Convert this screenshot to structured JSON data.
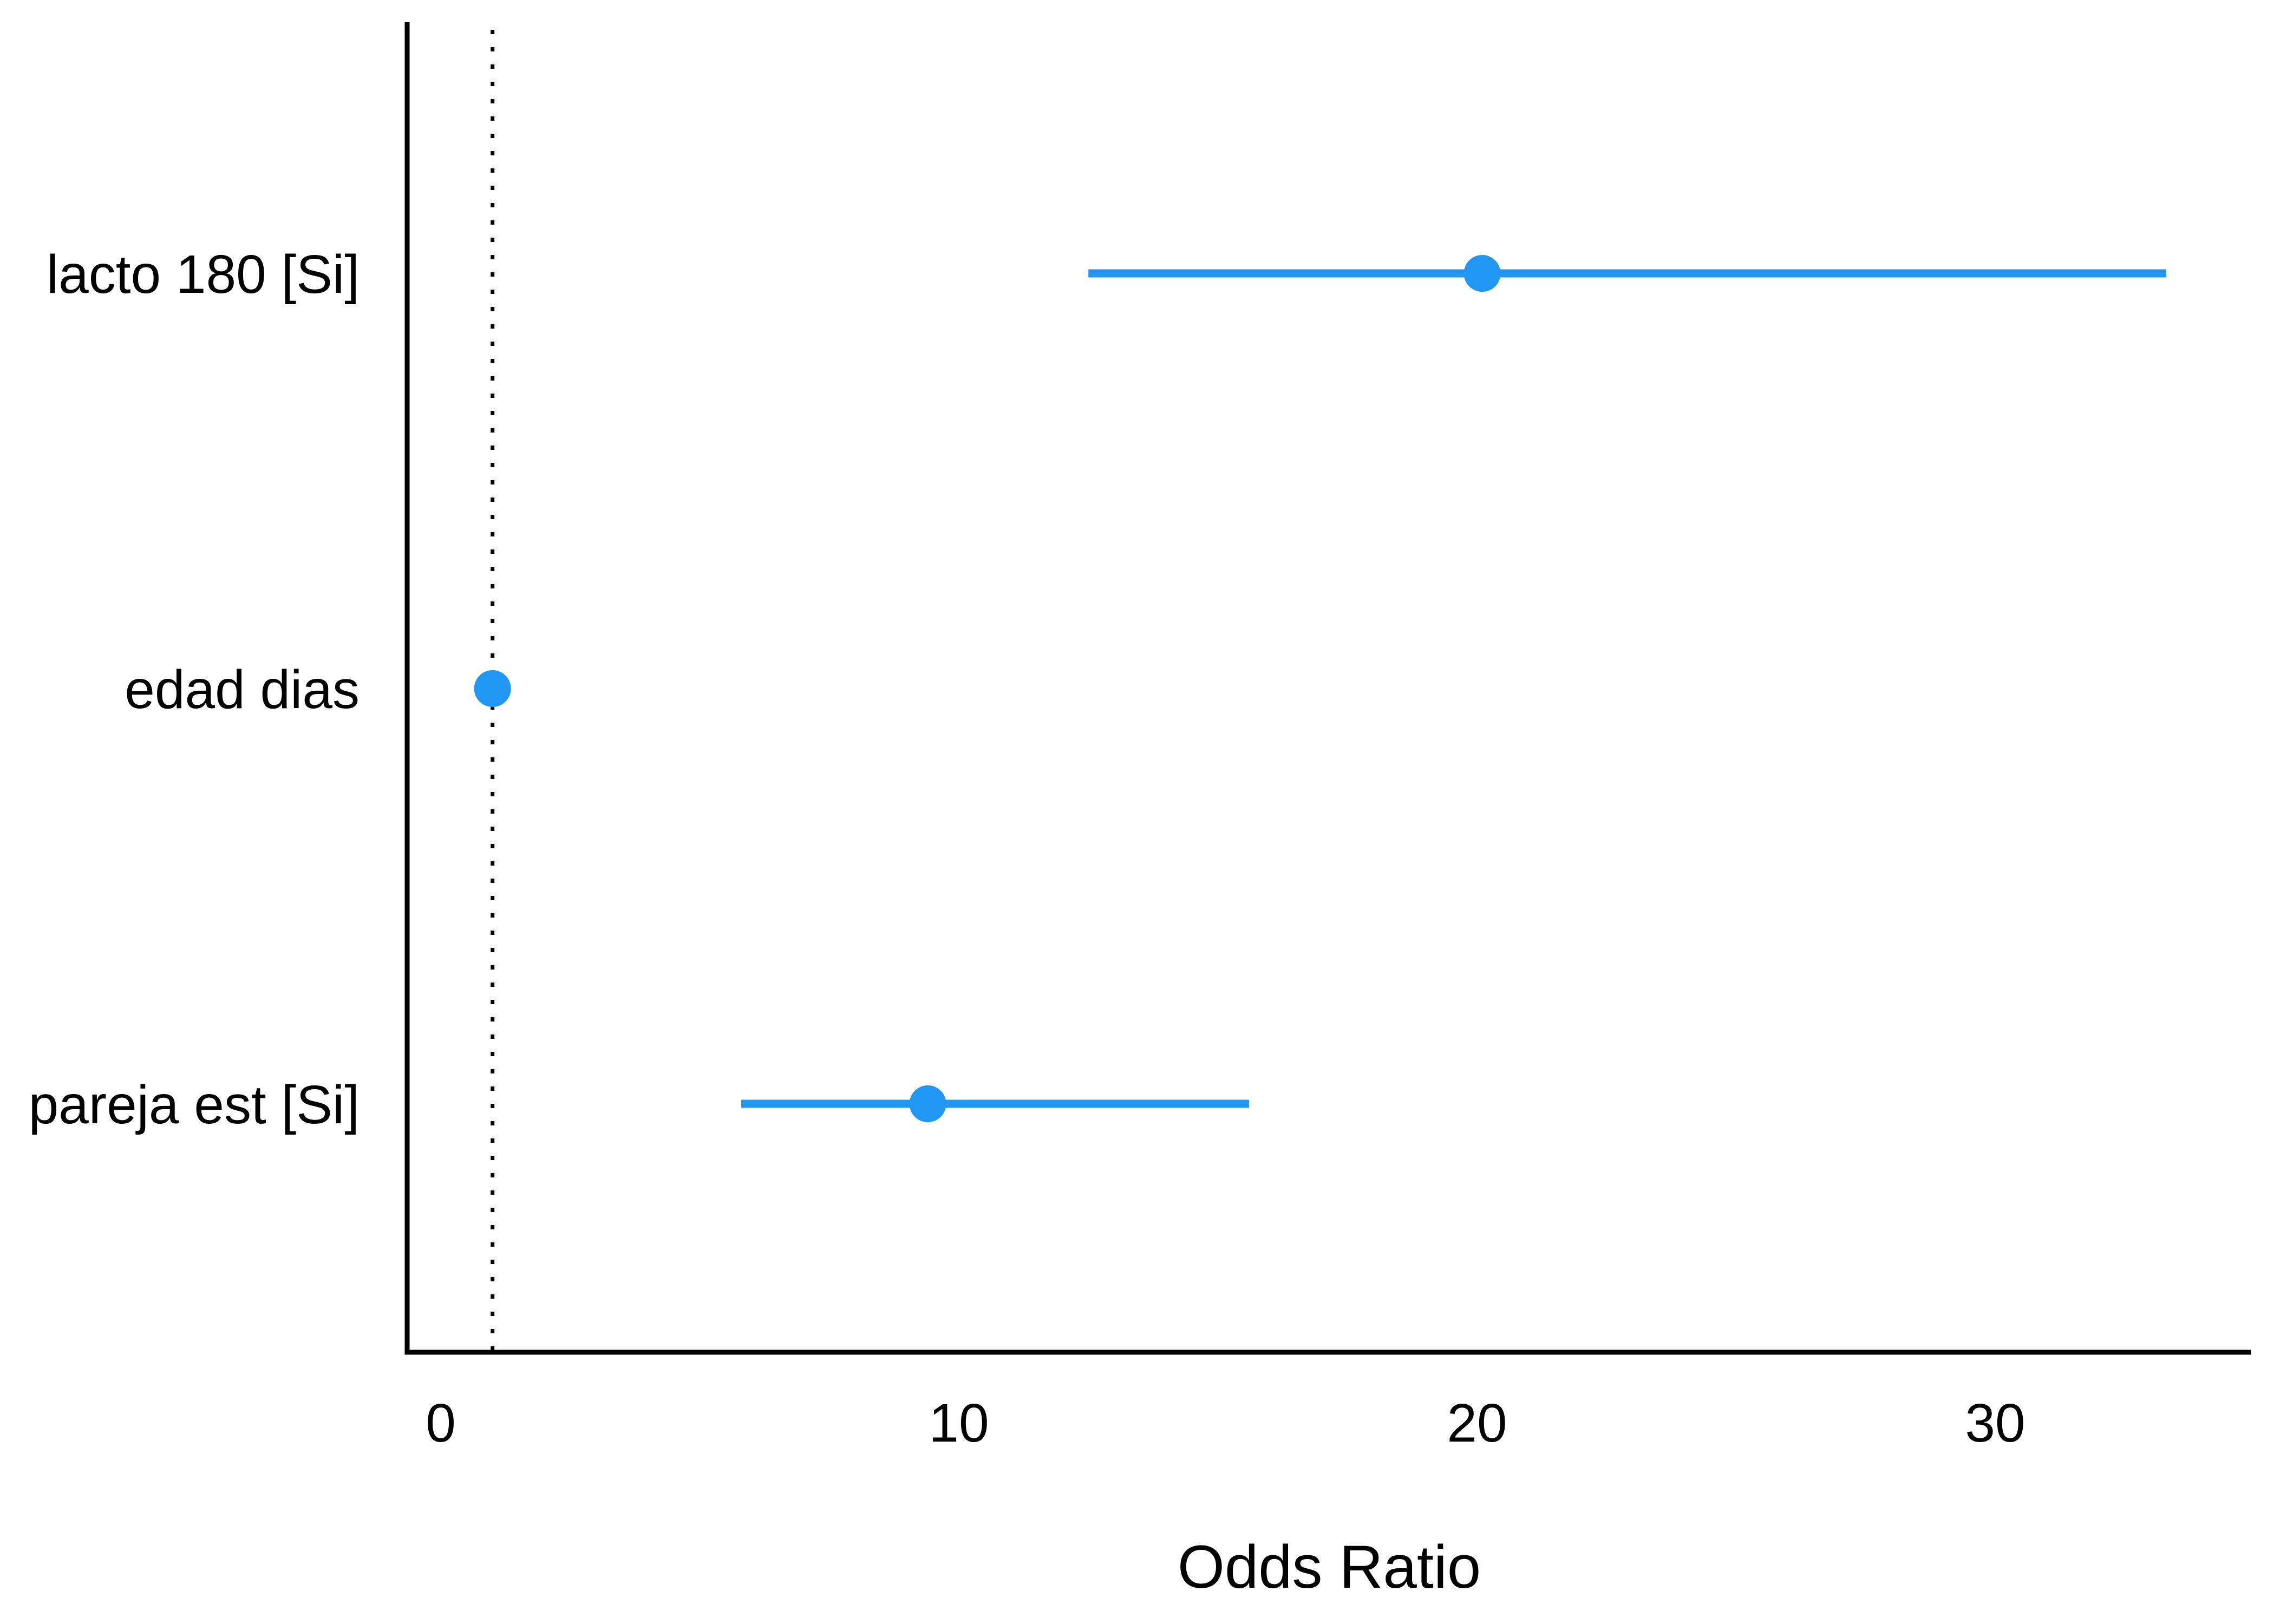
{
  "chart_data": {
    "type": "scatter",
    "subtype": "forest-plot-odds-ratios",
    "title": "",
    "xlabel": "Odds Ratio",
    "ylabel": "",
    "x_ticks": [
      0,
      10,
      20,
      30
    ],
    "xlim": [
      -0.65,
      35
    ],
    "reference_line_x": 1,
    "grid": false,
    "legend": false,
    "categories": [
      "lacto 180 [Si]",
      "edad dias",
      "pareja est [Si]"
    ],
    "rows": [
      {
        "label": "lacto 180 [Si]",
        "odds_ratio": 20.1,
        "ci_low": 12.5,
        "ci_high": 33.3
      },
      {
        "label": "edad dias",
        "odds_ratio": 1.0,
        "ci_low": 1.0,
        "ci_high": 1.0
      },
      {
        "label": "pareja est [Si]",
        "odds_ratio": 9.4,
        "ci_low": 5.8,
        "ci_high": 15.6
      }
    ],
    "colors": {
      "point": "#2196F3",
      "ci_line": "#2196F3",
      "axis": "#000000",
      "reference_line": "#000000",
      "text": "#000000",
      "background": "#FFFFFF"
    }
  }
}
